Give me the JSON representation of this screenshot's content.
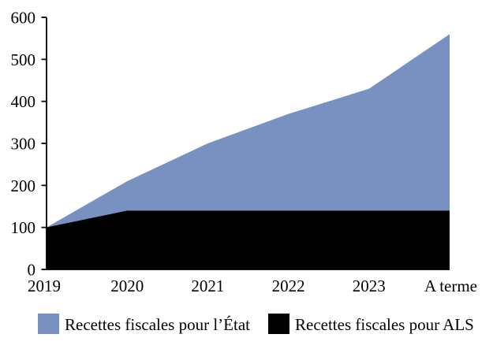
{
  "chart_data": {
    "type": "area",
    "overlap": true,
    "title": "",
    "xlabel": "",
    "ylabel": "",
    "categories": [
      "2019",
      "2020",
      "2021",
      "2022",
      "2023",
      "A terme"
    ],
    "series": [
      {
        "name": "Recettes fiscales pour l’État",
        "color": "#7891C0",
        "values": [
          100,
          210,
          300,
          370,
          430,
          560
        ]
      },
      {
        "name": "Recettes fiscales pour ALS",
        "color": "#000000",
        "values": [
          100,
          140,
          140,
          140,
          140,
          140
        ]
      }
    ],
    "ylim": [
      0,
      600
    ],
    "ytick_step": 100,
    "yticks": [
      0,
      100,
      200,
      300,
      400,
      500,
      600
    ],
    "grid": false,
    "legend_position": "bottom"
  },
  "colors": {
    "background": "#FFFFFF",
    "axis": "#000000",
    "text": "#000000",
    "series_etat": "#7891C0",
    "series_als": "#000000"
  }
}
